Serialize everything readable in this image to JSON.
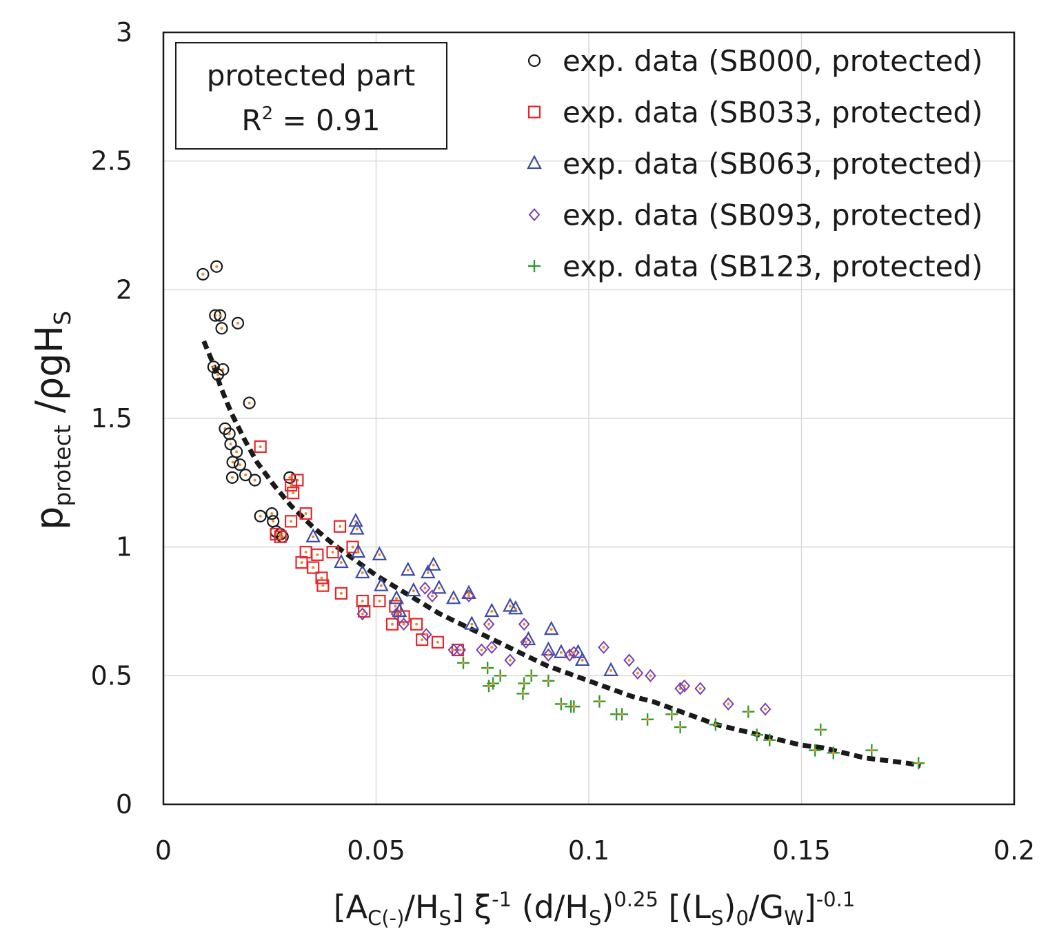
{
  "chart_data": {
    "type": "scatter",
    "xlabel": {
      "parts": [
        {
          "t": "[A"
        },
        {
          "t": "C(-)",
          "pos": "sub"
        },
        {
          "t": "/H"
        },
        {
          "t": "S",
          "pos": "sub"
        },
        {
          "t": "] ξ"
        },
        {
          "t": "-1",
          "pos": "sup"
        },
        {
          "t": " (d/H"
        },
        {
          "t": "S",
          "pos": "sub"
        },
        {
          "t": ")"
        },
        {
          "t": "0.25",
          "pos": "sup"
        },
        {
          "t": " [(L"
        },
        {
          "t": "S",
          "pos": "sub"
        },
        {
          "t": ")"
        },
        {
          "t": "0",
          "pos": "sub"
        },
        {
          "t": "/G"
        },
        {
          "t": "W",
          "pos": "sub"
        },
        {
          "t": "]"
        },
        {
          "t": "-0.1",
          "pos": "sup"
        }
      ]
    },
    "ylabel": {
      "parts": [
        {
          "t": "p"
        },
        {
          "t": "protect",
          "pos": "sub"
        },
        {
          "t": " /ρgH"
        },
        {
          "t": "S",
          "pos": "sub"
        }
      ]
    },
    "xlim": [
      0,
      0.2
    ],
    "ylim": [
      0,
      3
    ],
    "xticks": [
      "0",
      "0.05",
      "0.1",
      "0.15",
      "0.2"
    ],
    "yticks": [
      "0",
      "0.5",
      "1",
      "1.5",
      "2",
      "2.5",
      "3"
    ],
    "grid": true,
    "legend_position": "top-right",
    "annotation": {
      "line1": "protected part",
      "line2_prefix": "R",
      "line2_sup": "2",
      "line2_suffix": " = 0.91"
    },
    "series": [
      {
        "name": "exp. data (SB000, protected)",
        "marker": "circle",
        "color": "#1a1a1a",
        "points": [
          [
            0.0093,
            2.06
          ],
          [
            0.0125,
            2.09
          ],
          [
            0.0122,
            1.9
          ],
          [
            0.0133,
            1.9
          ],
          [
            0.0137,
            1.85
          ],
          [
            0.0175,
            1.87
          ],
          [
            0.0118,
            1.7
          ],
          [
            0.014,
            1.69
          ],
          [
            0.0128,
            1.67
          ],
          [
            0.0202,
            1.56
          ],
          [
            0.0145,
            1.46
          ],
          [
            0.0155,
            1.44
          ],
          [
            0.0158,
            1.4
          ],
          [
            0.0172,
            1.37
          ],
          [
            0.0163,
            1.33
          ],
          [
            0.018,
            1.32
          ],
          [
            0.0193,
            1.28
          ],
          [
            0.0162,
            1.27
          ],
          [
            0.0215,
            1.26
          ],
          [
            0.0297,
            1.27
          ],
          [
            0.0228,
            1.12
          ],
          [
            0.0255,
            1.13
          ],
          [
            0.0258,
            1.1
          ],
          [
            0.0265,
            1.06
          ],
          [
            0.0275,
            1.05
          ],
          [
            0.028,
            1.04
          ]
        ]
      },
      {
        "name": "exp. data (SB033, protected)",
        "marker": "square",
        "color": "#e8262a",
        "points": [
          [
            0.0228,
            1.39
          ],
          [
            0.0315,
            1.26
          ],
          [
            0.03,
            1.24
          ],
          [
            0.0305,
            1.21
          ],
          [
            0.0335,
            1.13
          ],
          [
            0.03,
            1.1
          ],
          [
            0.0415,
            1.08
          ],
          [
            0.0265,
            1.05
          ],
          [
            0.0275,
            1.04
          ],
          [
            0.0445,
            1.0
          ],
          [
            0.0335,
            0.98
          ],
          [
            0.0398,
            0.98
          ],
          [
            0.0362,
            0.97
          ],
          [
            0.0325,
            0.94
          ],
          [
            0.0352,
            0.92
          ],
          [
            0.0372,
            0.88
          ],
          [
            0.0375,
            0.85
          ],
          [
            0.0418,
            0.82
          ],
          [
            0.0468,
            0.79
          ],
          [
            0.0508,
            0.79
          ],
          [
            0.0545,
            0.77
          ],
          [
            0.0472,
            0.75
          ],
          [
            0.0565,
            0.73
          ],
          [
            0.0538,
            0.7
          ],
          [
            0.0595,
            0.7
          ],
          [
            0.0608,
            0.64
          ],
          [
            0.0645,
            0.63
          ],
          [
            0.0692,
            0.6
          ]
        ]
      },
      {
        "name": "exp. data (SB063, protected)",
        "marker": "triangle",
        "color": "#3b4ba3",
        "points": [
          [
            0.0352,
            1.04
          ],
          [
            0.0452,
            1.1
          ],
          [
            0.0455,
            1.07
          ],
          [
            0.0418,
            0.94
          ],
          [
            0.0458,
            0.98
          ],
          [
            0.0508,
            0.97
          ],
          [
            0.0468,
            0.9
          ],
          [
            0.0512,
            0.85
          ],
          [
            0.0548,
            0.8
          ],
          [
            0.0555,
            0.75
          ],
          [
            0.0575,
            0.91
          ],
          [
            0.0622,
            0.9
          ],
          [
            0.0635,
            0.93
          ],
          [
            0.0648,
            0.84
          ],
          [
            0.0588,
            0.83
          ],
          [
            0.0682,
            0.8
          ],
          [
            0.0718,
            0.82
          ],
          [
            0.0725,
            0.7
          ],
          [
            0.0772,
            0.75
          ],
          [
            0.0815,
            0.77
          ],
          [
            0.0828,
            0.76
          ],
          [
            0.0858,
            0.64
          ],
          [
            0.0912,
            0.68
          ],
          [
            0.0905,
            0.6
          ],
          [
            0.0935,
            0.59
          ],
          [
            0.0975,
            0.59
          ],
          [
            0.0985,
            0.56
          ],
          [
            0.1052,
            0.52
          ]
        ]
      },
      {
        "name": "exp. data (SB093, protected)",
        "marker": "diamond",
        "color": "#7a3fb0",
        "points": [
          [
            0.0468,
            0.74
          ],
          [
            0.0548,
            0.74
          ],
          [
            0.0565,
            0.7
          ],
          [
            0.0615,
            0.84
          ],
          [
            0.0632,
            0.81
          ],
          [
            0.0618,
            0.66
          ],
          [
            0.0682,
            0.6
          ],
          [
            0.0698,
            0.6
          ],
          [
            0.0718,
            0.81
          ],
          [
            0.0748,
            0.6
          ],
          [
            0.0765,
            0.7
          ],
          [
            0.0772,
            0.61
          ],
          [
            0.0815,
            0.56
          ],
          [
            0.0848,
            0.7
          ],
          [
            0.0852,
            0.63
          ],
          [
            0.0905,
            0.58
          ],
          [
            0.0955,
            0.58
          ],
          [
            0.0965,
            0.59
          ],
          [
            0.1035,
            0.61
          ],
          [
            0.1095,
            0.56
          ],
          [
            0.1115,
            0.51
          ],
          [
            0.1145,
            0.5
          ],
          [
            0.1215,
            0.45
          ],
          [
            0.1225,
            0.46
          ],
          [
            0.1262,
            0.45
          ],
          [
            0.1328,
            0.39
          ],
          [
            0.1415,
            0.37
          ]
        ]
      },
      {
        "name": "exp. data (SB123, protected)",
        "marker": "plus",
        "color": "#2e9a2e",
        "points": [
          [
            0.0705,
            0.55
          ],
          [
            0.0762,
            0.53
          ],
          [
            0.0765,
            0.46
          ],
          [
            0.0775,
            0.47
          ],
          [
            0.0792,
            0.5
          ],
          [
            0.0845,
            0.43
          ],
          [
            0.0848,
            0.47
          ],
          [
            0.0865,
            0.5
          ],
          [
            0.0905,
            0.48
          ],
          [
            0.0935,
            0.39
          ],
          [
            0.0958,
            0.38
          ],
          [
            0.0965,
            0.38
          ],
          [
            0.1025,
            0.4
          ],
          [
            0.1065,
            0.35
          ],
          [
            0.1078,
            0.35
          ],
          [
            0.1138,
            0.33
          ],
          [
            0.1195,
            0.35
          ],
          [
            0.1215,
            0.3
          ],
          [
            0.1298,
            0.31
          ],
          [
            0.1375,
            0.36
          ],
          [
            0.1395,
            0.27
          ],
          [
            0.1425,
            0.25
          ],
          [
            0.1532,
            0.21
          ],
          [
            0.1545,
            0.29
          ],
          [
            0.1575,
            0.2
          ],
          [
            0.1665,
            0.21
          ],
          [
            0.1775,
            0.16
          ]
        ]
      },
      {
        "name": "",
        "marker": "dashed-line",
        "color": "#1a1a1a",
        "points": [
          [
            0.0095,
            1.8
          ],
          [
            0.0115,
            1.72
          ],
          [
            0.0135,
            1.62
          ],
          [
            0.016,
            1.52
          ],
          [
            0.019,
            1.42
          ],
          [
            0.022,
            1.33
          ],
          [
            0.026,
            1.24
          ],
          [
            0.03,
            1.16
          ],
          [
            0.035,
            1.08
          ],
          [
            0.04,
            1.01
          ],
          [
            0.045,
            0.95
          ],
          [
            0.05,
            0.89
          ],
          [
            0.055,
            0.84
          ],
          [
            0.06,
            0.79
          ],
          [
            0.065,
            0.74
          ],
          [
            0.07,
            0.7
          ],
          [
            0.075,
            0.66
          ],
          [
            0.08,
            0.62
          ],
          [
            0.085,
            0.58
          ],
          [
            0.09,
            0.54
          ],
          [
            0.095,
            0.51
          ],
          [
            0.1,
            0.48
          ],
          [
            0.105,
            0.45
          ],
          [
            0.11,
            0.42
          ],
          [
            0.115,
            0.4
          ],
          [
            0.12,
            0.37
          ],
          [
            0.125,
            0.34
          ],
          [
            0.13,
            0.31
          ],
          [
            0.135,
            0.29
          ],
          [
            0.14,
            0.27
          ],
          [
            0.145,
            0.25
          ],
          [
            0.15,
            0.23
          ],
          [
            0.155,
            0.22
          ],
          [
            0.16,
            0.2
          ],
          [
            0.165,
            0.18
          ],
          [
            0.17,
            0.17
          ],
          [
            0.175,
            0.16
          ],
          [
            0.178,
            0.15
          ]
        ]
      }
    ]
  }
}
